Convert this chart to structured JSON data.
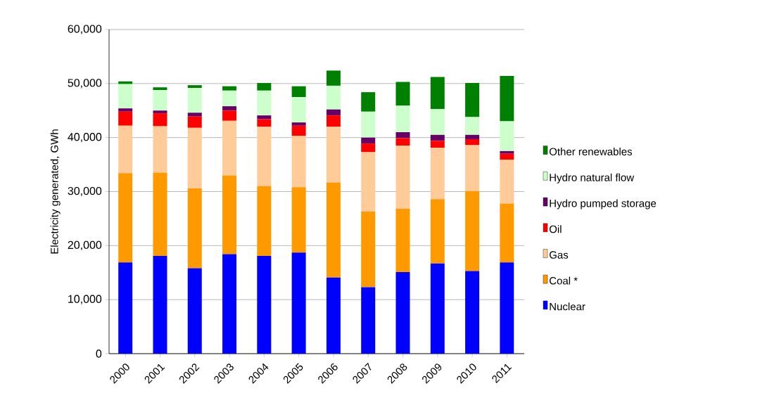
{
  "chart_data": {
    "type": "bar",
    "stacked": true,
    "ylabel": "Electricity generated, GWh",
    "categories": [
      "2000",
      "2001",
      "2002",
      "2003",
      "2004",
      "2005",
      "2006",
      "2007",
      "2008",
      "2009",
      "2010",
      "2011"
    ],
    "series": [
      {
        "name": "Nuclear",
        "color": "#0000ff",
        "values": [
          16900,
          18100,
          15800,
          18400,
          18100,
          18700,
          14100,
          12300,
          15100,
          16700,
          15300,
          16900
        ]
      },
      {
        "name": "Coal *",
        "color": "#ff9900",
        "values": [
          16500,
          15400,
          14800,
          14600,
          12900,
          12100,
          17600,
          14000,
          11700,
          11900,
          14800,
          10900
        ]
      },
      {
        "name": "Gas",
        "color": "#ffcc99",
        "values": [
          8800,
          8600,
          11200,
          10100,
          11000,
          9500,
          10300,
          11000,
          11700,
          9500,
          8500,
          8100
        ]
      },
      {
        "name": "Oil",
        "color": "#ff0000",
        "values": [
          2600,
          2400,
          2100,
          1900,
          1400,
          1900,
          2100,
          1600,
          1400,
          1300,
          1100,
          1100
        ]
      },
      {
        "name": "Hydro pumped storage",
        "color": "#660066",
        "values": [
          600,
          500,
          700,
          800,
          700,
          600,
          1100,
          1100,
          1100,
          1100,
          800,
          500
        ]
      },
      {
        "name": "Hydro natural flow",
        "color": "#ccffcc",
        "values": [
          4500,
          3800,
          4600,
          2900,
          4600,
          4700,
          4400,
          4800,
          4900,
          4800,
          3300,
          5500
        ]
      },
      {
        "name": "Other renewables",
        "color": "#008000",
        "values": [
          500,
          500,
          500,
          800,
          1400,
          2000,
          2800,
          3600,
          4400,
          5900,
          6300,
          8400
        ]
      }
    ],
    "ylim": [
      0,
      60000
    ],
    "yticks": [
      {
        "value": 0,
        "label": "0"
      },
      {
        "value": 10000,
        "label": "10,000"
      },
      {
        "value": 20000,
        "label": "20,000"
      },
      {
        "value": 30000,
        "label": "30,000"
      },
      {
        "value": 40000,
        "label": "40,000"
      },
      {
        "value": 50000,
        "label": "50,000"
      },
      {
        "value": 60000,
        "label": "60,000"
      }
    ],
    "grid": "y",
    "legend": "right"
  }
}
